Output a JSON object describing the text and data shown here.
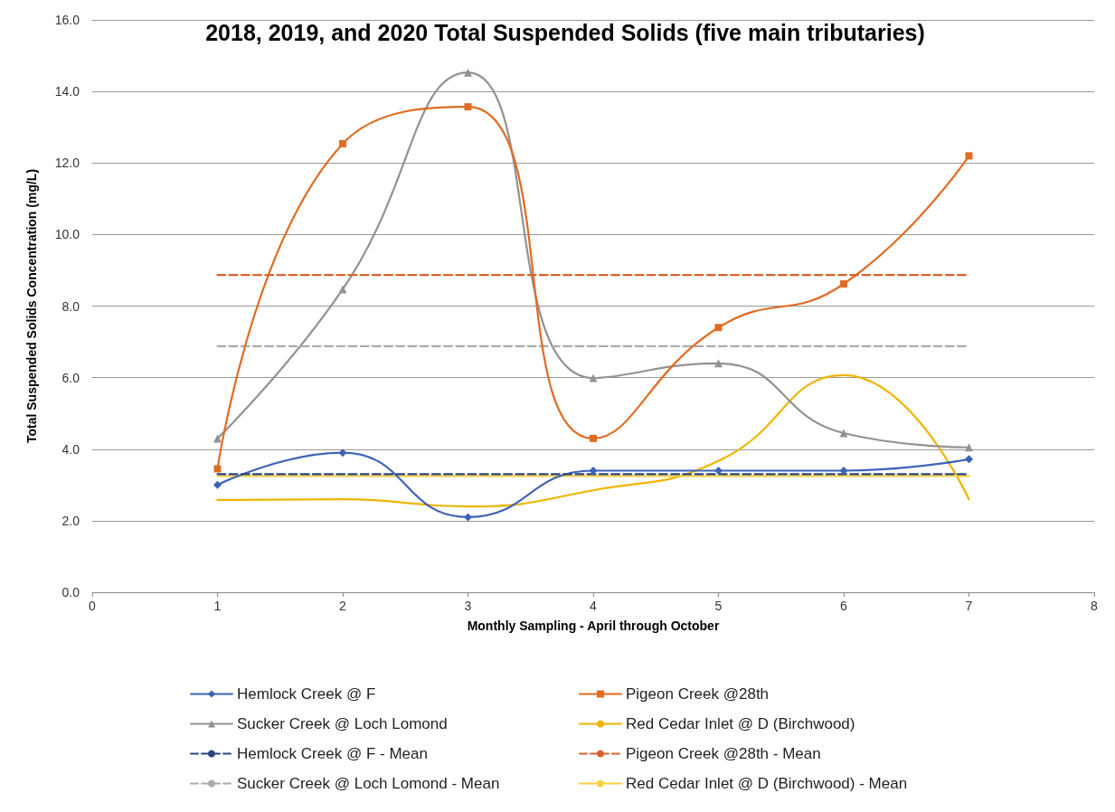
{
  "chart_data": {
    "type": "line",
    "title": "2018, 2019, and 2020 Total Suspended Solids (five main tributaries)",
    "xlabel": "Monthly Sampling - April through October",
    "ylabel": "Total Suspended Solids Concentration (mg/L)",
    "xlim": [
      0,
      8
    ],
    "xticks": [
      0,
      1,
      2,
      3,
      4,
      5,
      6,
      7,
      8
    ],
    "ylim": [
      0,
      16
    ],
    "yticks": [
      {
        "value": 0,
        "label": "0.0"
      },
      {
        "value": 2,
        "label": "2.0"
      },
      {
        "value": 4,
        "label": "4.0"
      },
      {
        "value": 6,
        "label": "6.0"
      },
      {
        "value": 8,
        "label": "8.0"
      },
      {
        "value": 10,
        "label": "10.0"
      },
      {
        "value": 12,
        "label": "12.0"
      },
      {
        "value": 14,
        "label": "14.0"
      },
      {
        "value": 16,
        "label": "16.0"
      }
    ],
    "grid": "y",
    "legend": "bottom",
    "line_style": "solid",
    "series": [
      {
        "name": "Hemlock Creek @ F",
        "color": "#3d63b8",
        "marker": "diamond",
        "x": [
          1,
          2,
          3,
          4,
          5,
          6,
          7
        ],
        "values": [
          3.0,
          3.9,
          2.1,
          3.4,
          3.4,
          3.4,
          3.72
        ]
      },
      {
        "name": "Pigeon Creek @28th",
        "color": "#e06c22",
        "marker": "square",
        "x": [
          1,
          2,
          3,
          4,
          5,
          6,
          7
        ],
        "values": [
          3.45,
          12.54,
          13.57,
          4.3,
          7.4,
          8.62,
          12.2
        ]
      },
      {
        "name": "Sucker Creek @ Loch Lomond",
        "color": "#929292",
        "marker": "triangle",
        "x": [
          1,
          2,
          3,
          4,
          5,
          6,
          7
        ],
        "values": [
          4.3,
          8.47,
          14.53,
          5.99,
          6.4,
          4.45,
          4.05
        ]
      },
      {
        "name": "Red Cedar Inlet @ D (Birchwood)",
        "color": "#f0b400",
        "marker": "none",
        "x": [
          1,
          2,
          3,
          4,
          5,
          6,
          7
        ],
        "values": [
          2.58,
          2.6,
          2.4,
          2.85,
          3.67,
          6.07,
          2.6
        ]
      },
      {
        "name": "Hemlock Creek @ F - Mean",
        "color": "#2a4580",
        "marker": "none",
        "line_style": "dashed",
        "x": [
          1,
          7
        ],
        "values": [
          3.3,
          3.3
        ]
      },
      {
        "name": "Pigeon Creek @28th - Mean",
        "color": "#d9622b",
        "marker": "none",
        "line_style": "dashed",
        "x": [
          1,
          7
        ],
        "values": [
          8.87,
          8.87
        ]
      },
      {
        "name": "Sucker Creek @ Loch Lomond - Mean",
        "color": "#ababab",
        "marker": "none",
        "line_style": "dashed",
        "x": [
          1,
          7
        ],
        "values": [
          6.88,
          6.88
        ]
      },
      {
        "name": "Red Cedar Inlet @ D (Birchwood) - Mean",
        "color": "#fcd040",
        "marker": "none",
        "line_style": "solid",
        "x": [
          1,
          7
        ],
        "values": [
          3.25,
          3.25
        ]
      }
    ]
  }
}
